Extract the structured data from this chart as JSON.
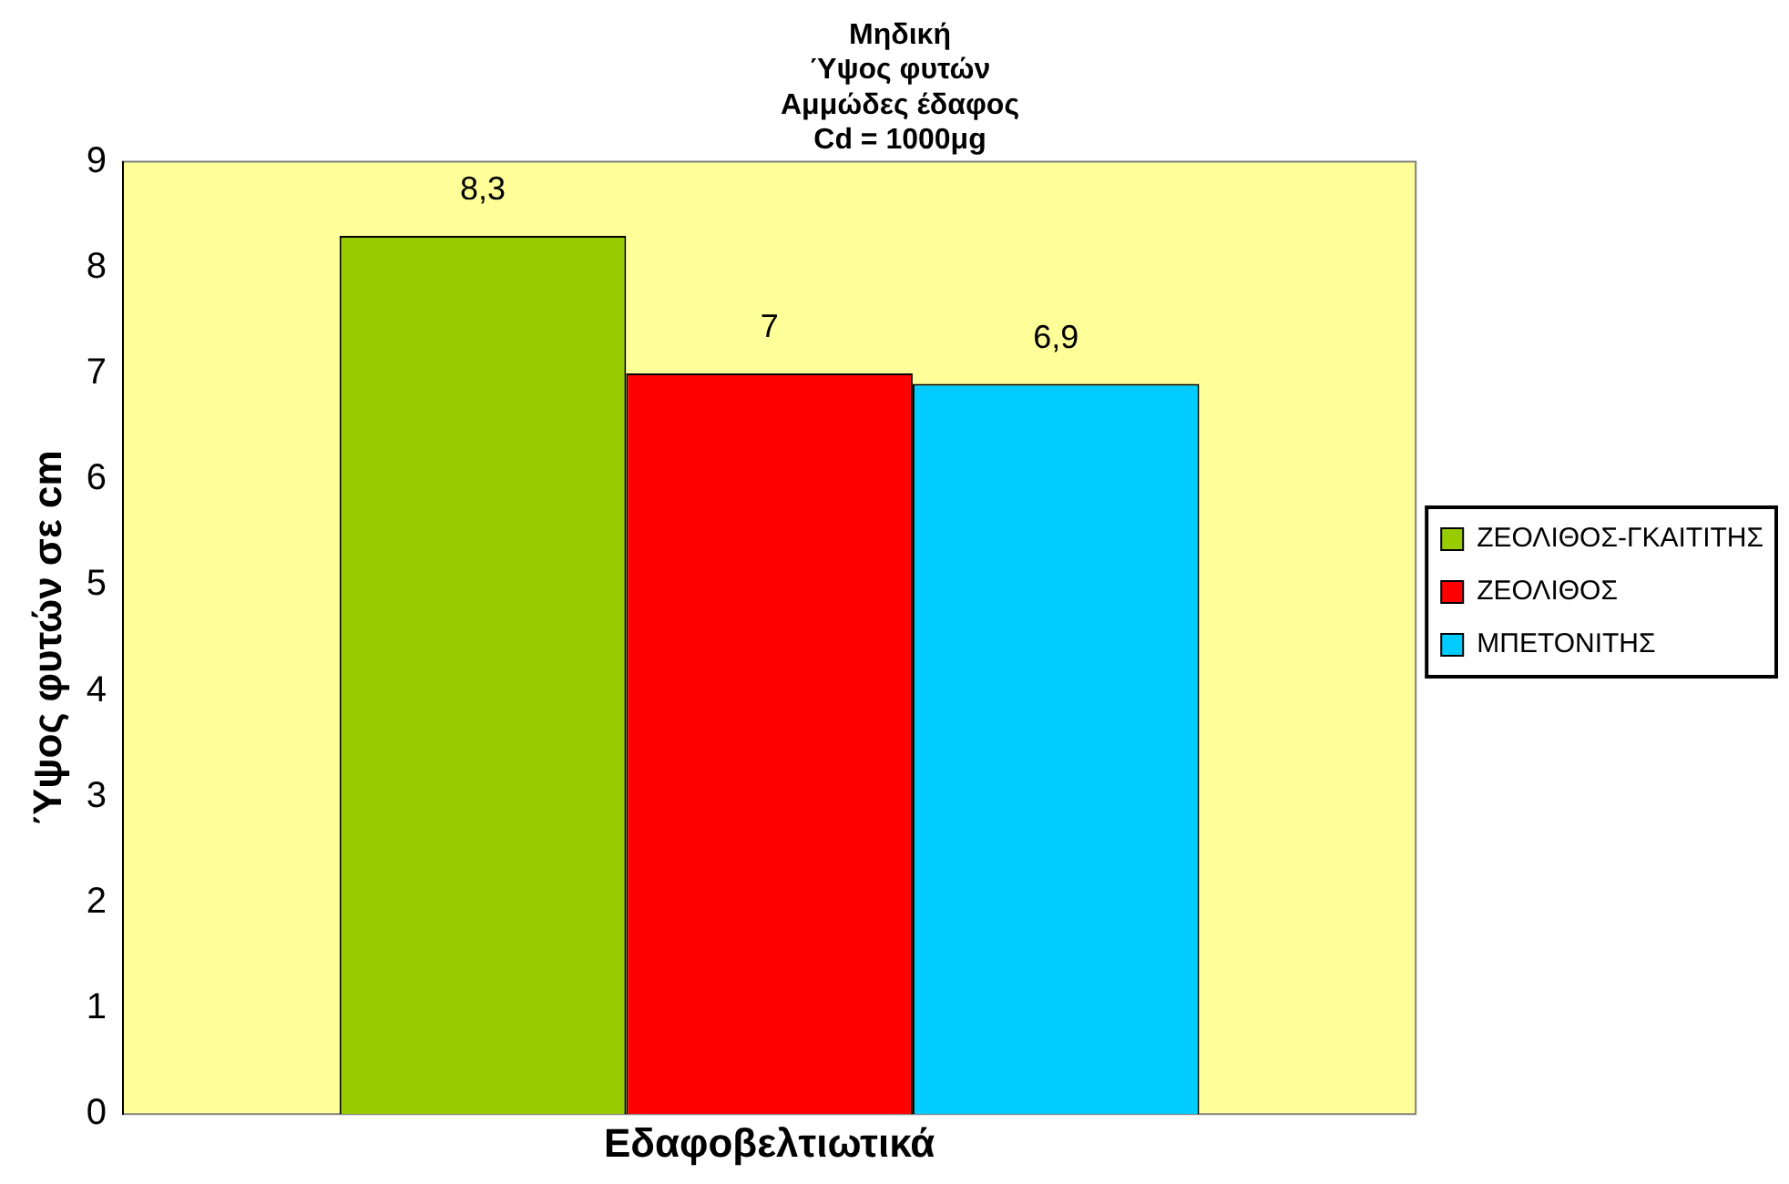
{
  "chart_data": {
    "type": "bar",
    "title": "Μηδική\nΎψος φυτών\nΑμμώδες έδαφος\nCd = 1000μg",
    "xlabel": "Εδαφοβελτιωτικά",
    "ylabel": "Ύψος φυτών σε cm",
    "categories": [
      null
    ],
    "series": [
      {
        "name": "ΖΕΟΛΙΘΟΣ-ΓΚΑΙΤΙΤΗΣ",
        "color": "#99cc00",
        "values": [
          8.3
        ],
        "value_labels": [
          "8,3"
        ]
      },
      {
        "name": "ΖΕΟΛΙΘΟΣ",
        "color": "#ff0000",
        "values": [
          7
        ],
        "value_labels": [
          "7"
        ]
      },
      {
        "name": "ΜΠΕΤΟΝΙΤΗΣ",
        "color": "#00ccff",
        "values": [
          6.9
        ],
        "value_labels": [
          "6,9"
        ]
      }
    ],
    "ylim": [
      0,
      9
    ],
    "yticks": [
      0,
      1,
      2,
      3,
      4,
      5,
      6,
      7,
      8,
      9
    ],
    "grid": false,
    "legend": "right"
  }
}
